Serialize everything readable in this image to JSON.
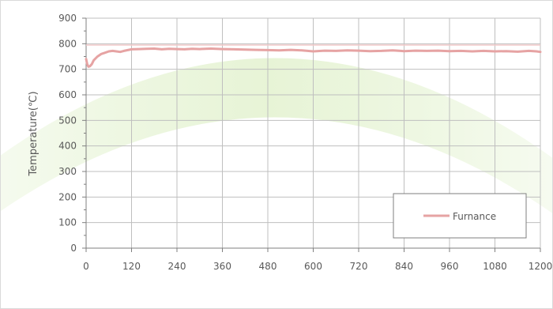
{
  "chart_data": {
    "type": "line",
    "title": "",
    "xlabel": "",
    "ylabel": "Temperature(℃)",
    "xlim": [
      0,
      1200
    ],
    "ylim": [
      0,
      900
    ],
    "x_ticks": [
      0,
      120,
      240,
      360,
      480,
      600,
      720,
      840,
      960,
      1080,
      1200
    ],
    "y_ticks": [
      0,
      100,
      200,
      300,
      400,
      500,
      600,
      700,
      800,
      900
    ],
    "grid": true,
    "legend_position": "bottom-right",
    "reference_line": {
      "y": 795,
      "color": "#f2c8c8"
    },
    "series": [
      {
        "name": "Furnance",
        "color": "#e6a3a3",
        "x": [
          0,
          3,
          6,
          10,
          15,
          20,
          30,
          40,
          50,
          60,
          70,
          80,
          90,
          100,
          110,
          120,
          140,
          160,
          180,
          200,
          220,
          240,
          260,
          280,
          300,
          330,
          360,
          390,
          420,
          450,
          480,
          510,
          540,
          570,
          600,
          630,
          660,
          690,
          720,
          750,
          780,
          810,
          840,
          870,
          900,
          930,
          960,
          990,
          1020,
          1050,
          1080,
          1110,
          1140,
          1170,
          1190,
          1200
        ],
        "y": [
          740,
          720,
          710,
          712,
          720,
          735,
          750,
          760,
          765,
          770,
          772,
          770,
          768,
          772,
          775,
          778,
          779,
          780,
          781,
          778,
          780,
          779,
          778,
          780,
          779,
          781,
          779,
          778,
          777,
          776,
          775,
          774,
          776,
          774,
          770,
          773,
          772,
          774,
          773,
          771,
          772,
          774,
          771,
          773,
          772,
          773,
          771,
          772,
          770,
          772,
          770,
          771,
          769,
          772,
          770,
          768
        ]
      }
    ]
  }
}
